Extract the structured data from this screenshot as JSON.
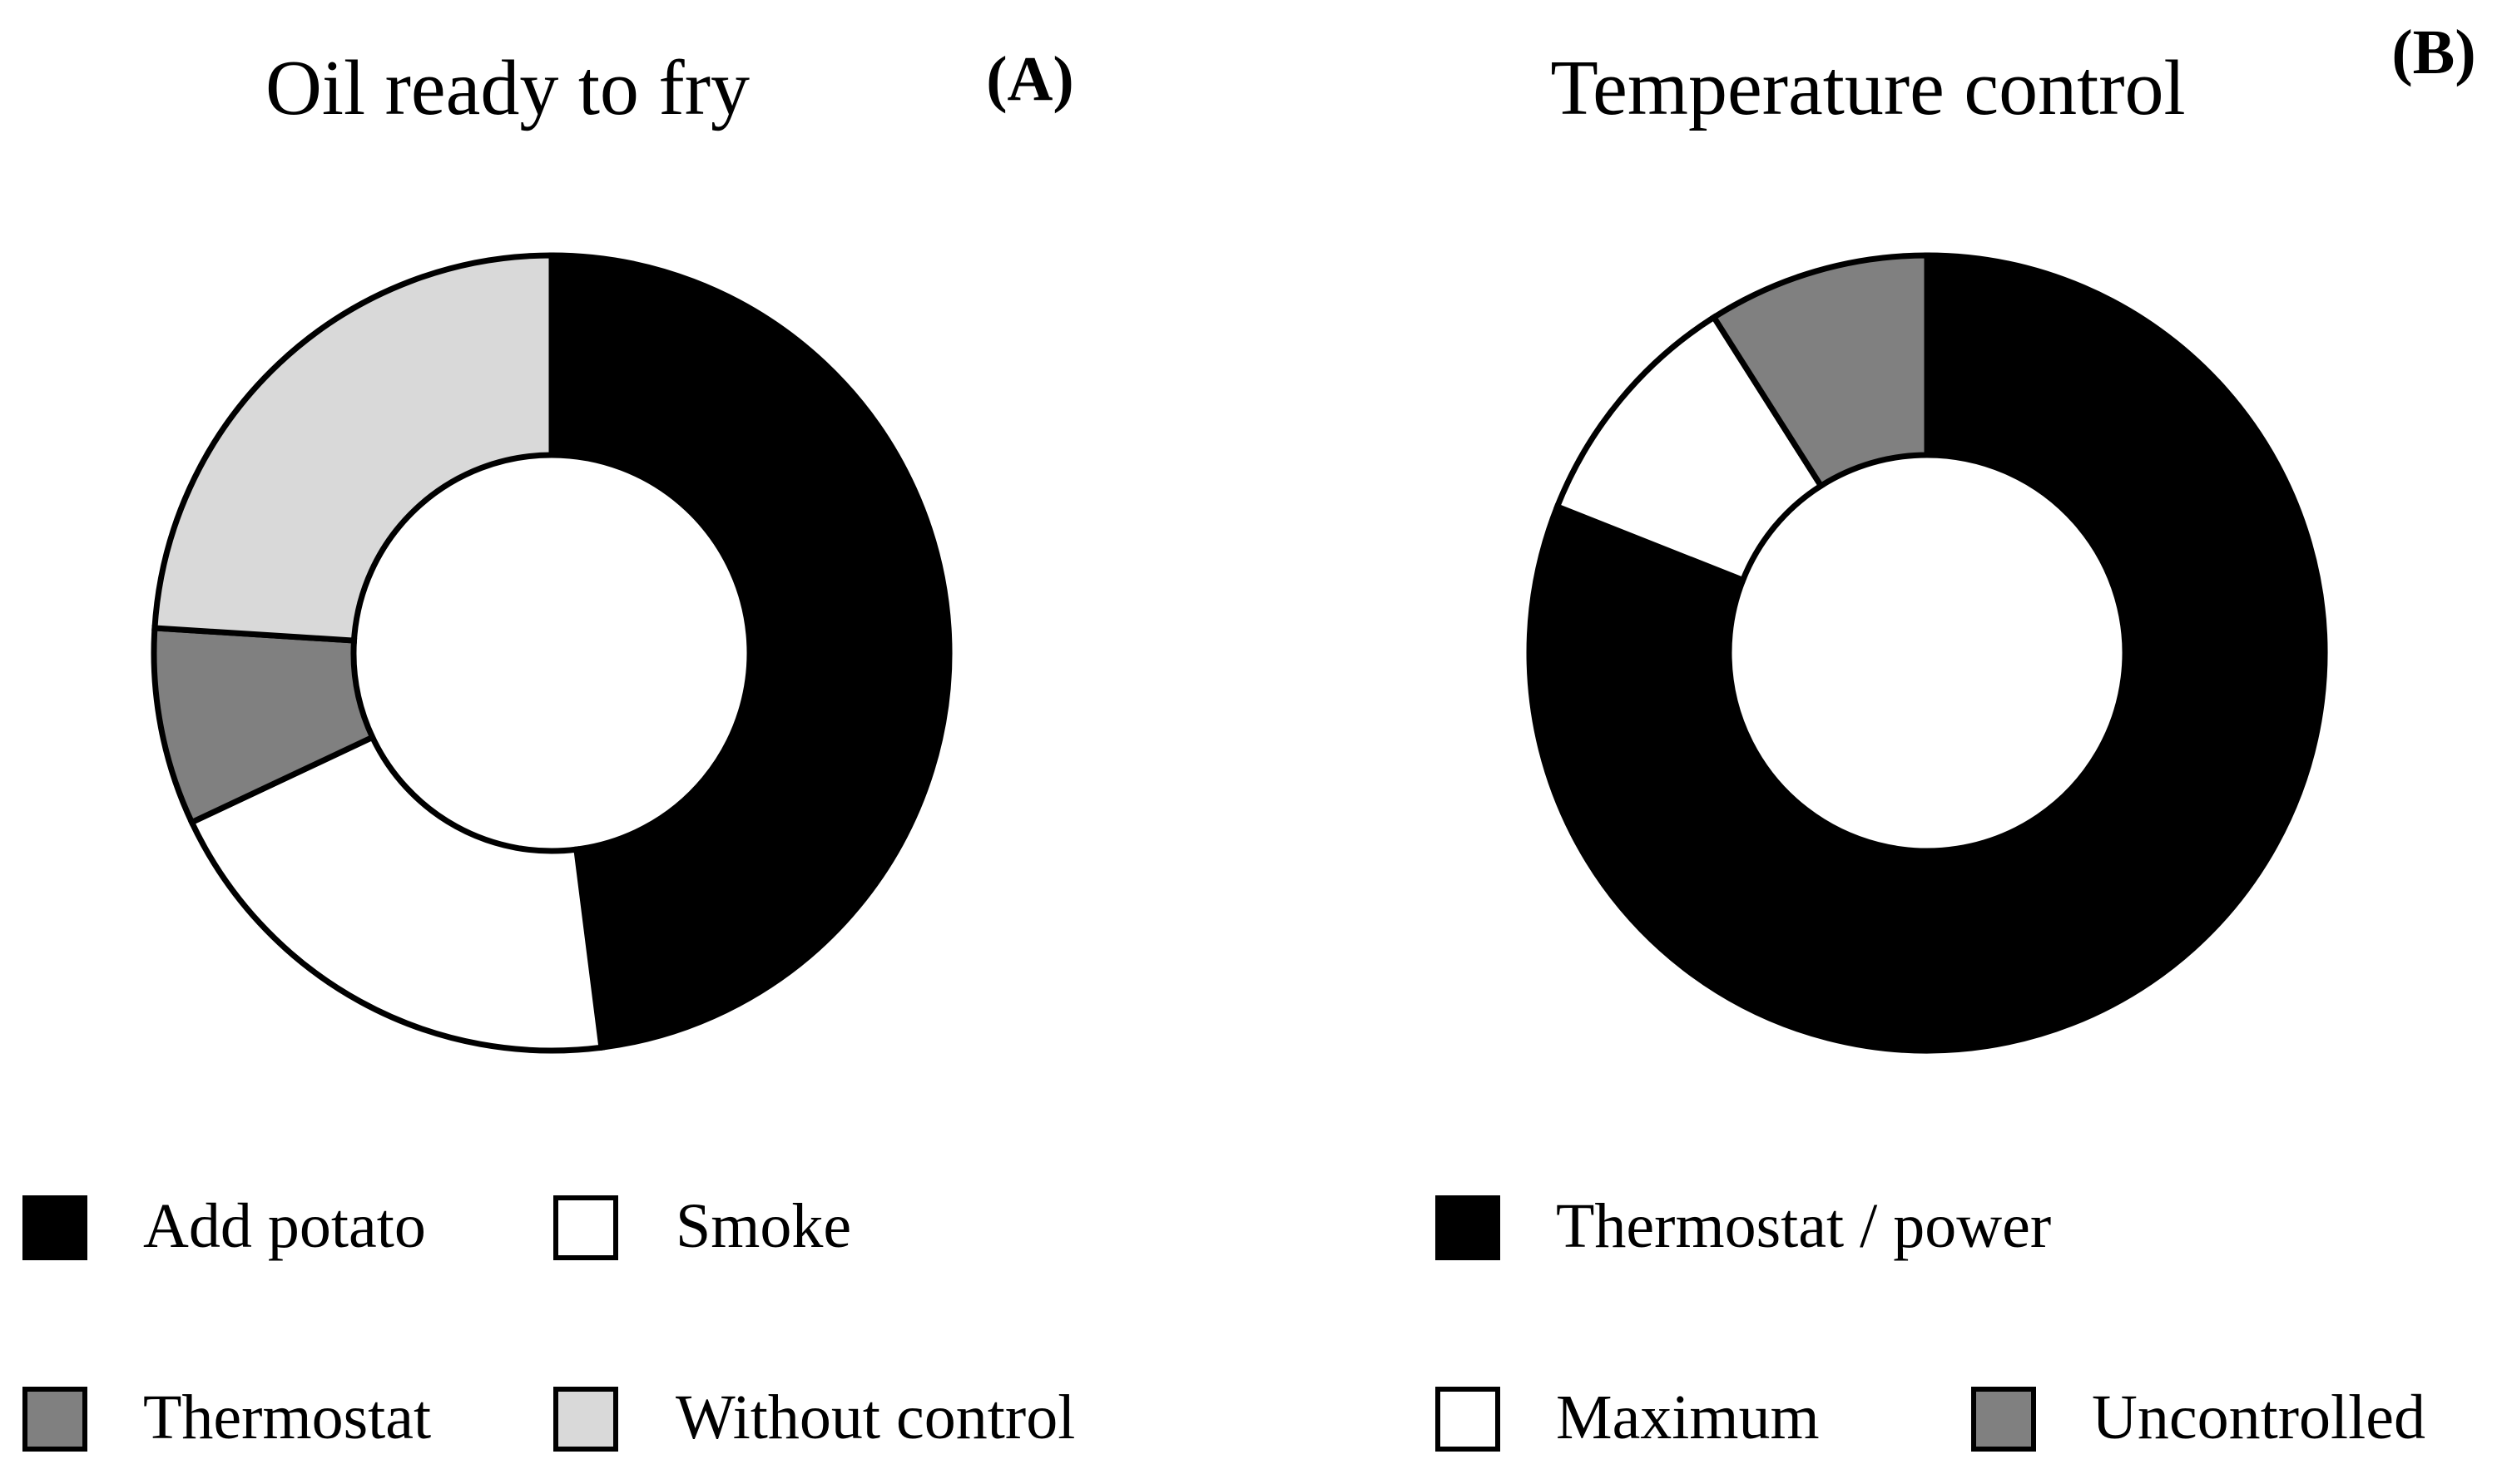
{
  "chart_data": [
    {
      "type": "pie",
      "variant": "donut",
      "title": "Oil ready to fry",
      "panel_label": "(A)",
      "categories": [
        "Add potato",
        "Smoke",
        "Thermostat",
        "Without control"
      ],
      "values": [
        48,
        20,
        8,
        24
      ],
      "unit": "%",
      "colors": [
        "#000000",
        "#ffffff",
        "#808080",
        "#d9d9d9"
      ],
      "legend_placement": "bottom"
    },
    {
      "type": "pie",
      "variant": "donut",
      "title": "Temperature control",
      "panel_label": "(B)",
      "categories": [
        "Thermostat / power",
        "Maximum",
        "Uncontrolled"
      ],
      "values": [
        81,
        10,
        9
      ],
      "unit": "%",
      "colors": [
        "#000000",
        "#ffffff",
        "#808080"
      ],
      "legend_placement": "bottom"
    }
  ]
}
